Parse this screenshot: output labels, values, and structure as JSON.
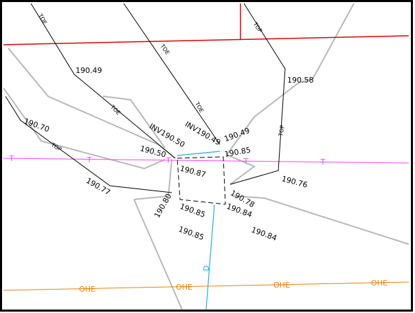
{
  "labels": [
    "TOE",
    "190.49",
    "TOE",
    "TOP",
    "190.58",
    "190.70",
    "TOE",
    "TOE",
    "INV190.50",
    "INV190.49",
    "190.49",
    "TOP",
    "TOP",
    "190.50",
    "190.85",
    "190.87",
    "190.76",
    "190.77",
    "190.78",
    "190.80",
    "190.85",
    "190.84",
    "190.85",
    "190.84"
  ],
  "utility_labels": {
    "T": [
      "T",
      "T",
      "T",
      "T",
      "T"
    ],
    "D": [
      "D"
    ],
    "OHE": [
      "OHE",
      "OHE",
      "OHE",
      "OHE"
    ]
  }
}
